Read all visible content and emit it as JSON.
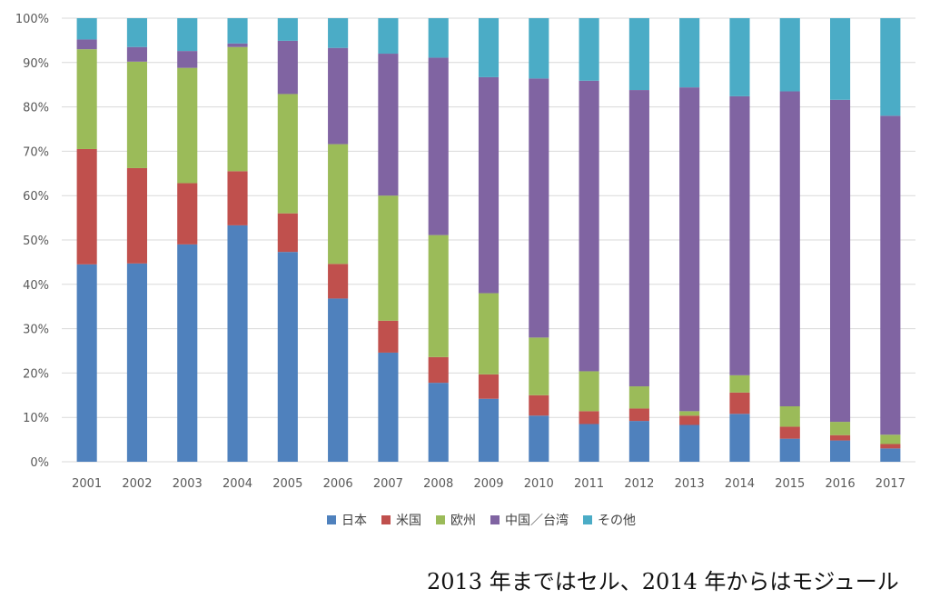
{
  "chart_data": {
    "type": "bar",
    "stacked": true,
    "normalized": true,
    "title": "",
    "xlabel": "",
    "ylabel": "",
    "ylim": [
      0,
      100
    ],
    "y_ticks": [
      "0%",
      "10%",
      "20%",
      "30%",
      "40%",
      "50%",
      "60%",
      "70%",
      "80%",
      "90%",
      "100%"
    ],
    "grid": true,
    "legend_position": "bottom",
    "categories": [
      "2001",
      "2002",
      "2003",
      "2004",
      "2005",
      "2006",
      "2007",
      "2008",
      "2009",
      "2010",
      "2011",
      "2012",
      "2013",
      "2014",
      "2015",
      "2016",
      "2017"
    ],
    "series": [
      {
        "name": "日本",
        "color": "#4f81bd",
        "values": [
          44.5,
          44.7,
          49.0,
          53.3,
          47.3,
          36.8,
          24.6,
          17.8,
          14.2,
          10.4,
          8.5,
          9.2,
          8.3,
          10.8,
          5.2,
          4.8,
          3.0
        ]
      },
      {
        "name": "米国",
        "color": "#c0504d",
        "values": [
          26.0,
          21.5,
          13.8,
          12.2,
          8.7,
          7.8,
          7.2,
          5.8,
          5.5,
          4.6,
          2.9,
          2.8,
          2.1,
          4.8,
          2.7,
          1.2,
          1.0
        ]
      },
      {
        "name": "欧州",
        "color": "#9bbb59",
        "values": [
          22.5,
          24.0,
          26.0,
          28.0,
          26.9,
          27.0,
          28.2,
          27.5,
          18.3,
          13.0,
          9.0,
          5.0,
          1.0,
          3.9,
          4.6,
          3.0,
          2.1
        ]
      },
      {
        "name": "中国／台湾",
        "color": "#8064a2",
        "values": [
          2.2,
          3.3,
          3.8,
          0.8,
          12.0,
          21.7,
          32.0,
          40.0,
          48.7,
          58.4,
          65.5,
          66.8,
          73.0,
          62.9,
          71.0,
          72.6,
          71.9
        ]
      },
      {
        "name": "その他",
        "color": "#4bacc6",
        "values": [
          4.8,
          6.5,
          7.4,
          5.7,
          5.1,
          6.7,
          8.0,
          8.9,
          13.3,
          13.6,
          14.1,
          16.2,
          15.6,
          17.6,
          16.5,
          18.4,
          22.0
        ]
      }
    ]
  },
  "caption": "2013 年まではセル、2014 年からはモジュール"
}
